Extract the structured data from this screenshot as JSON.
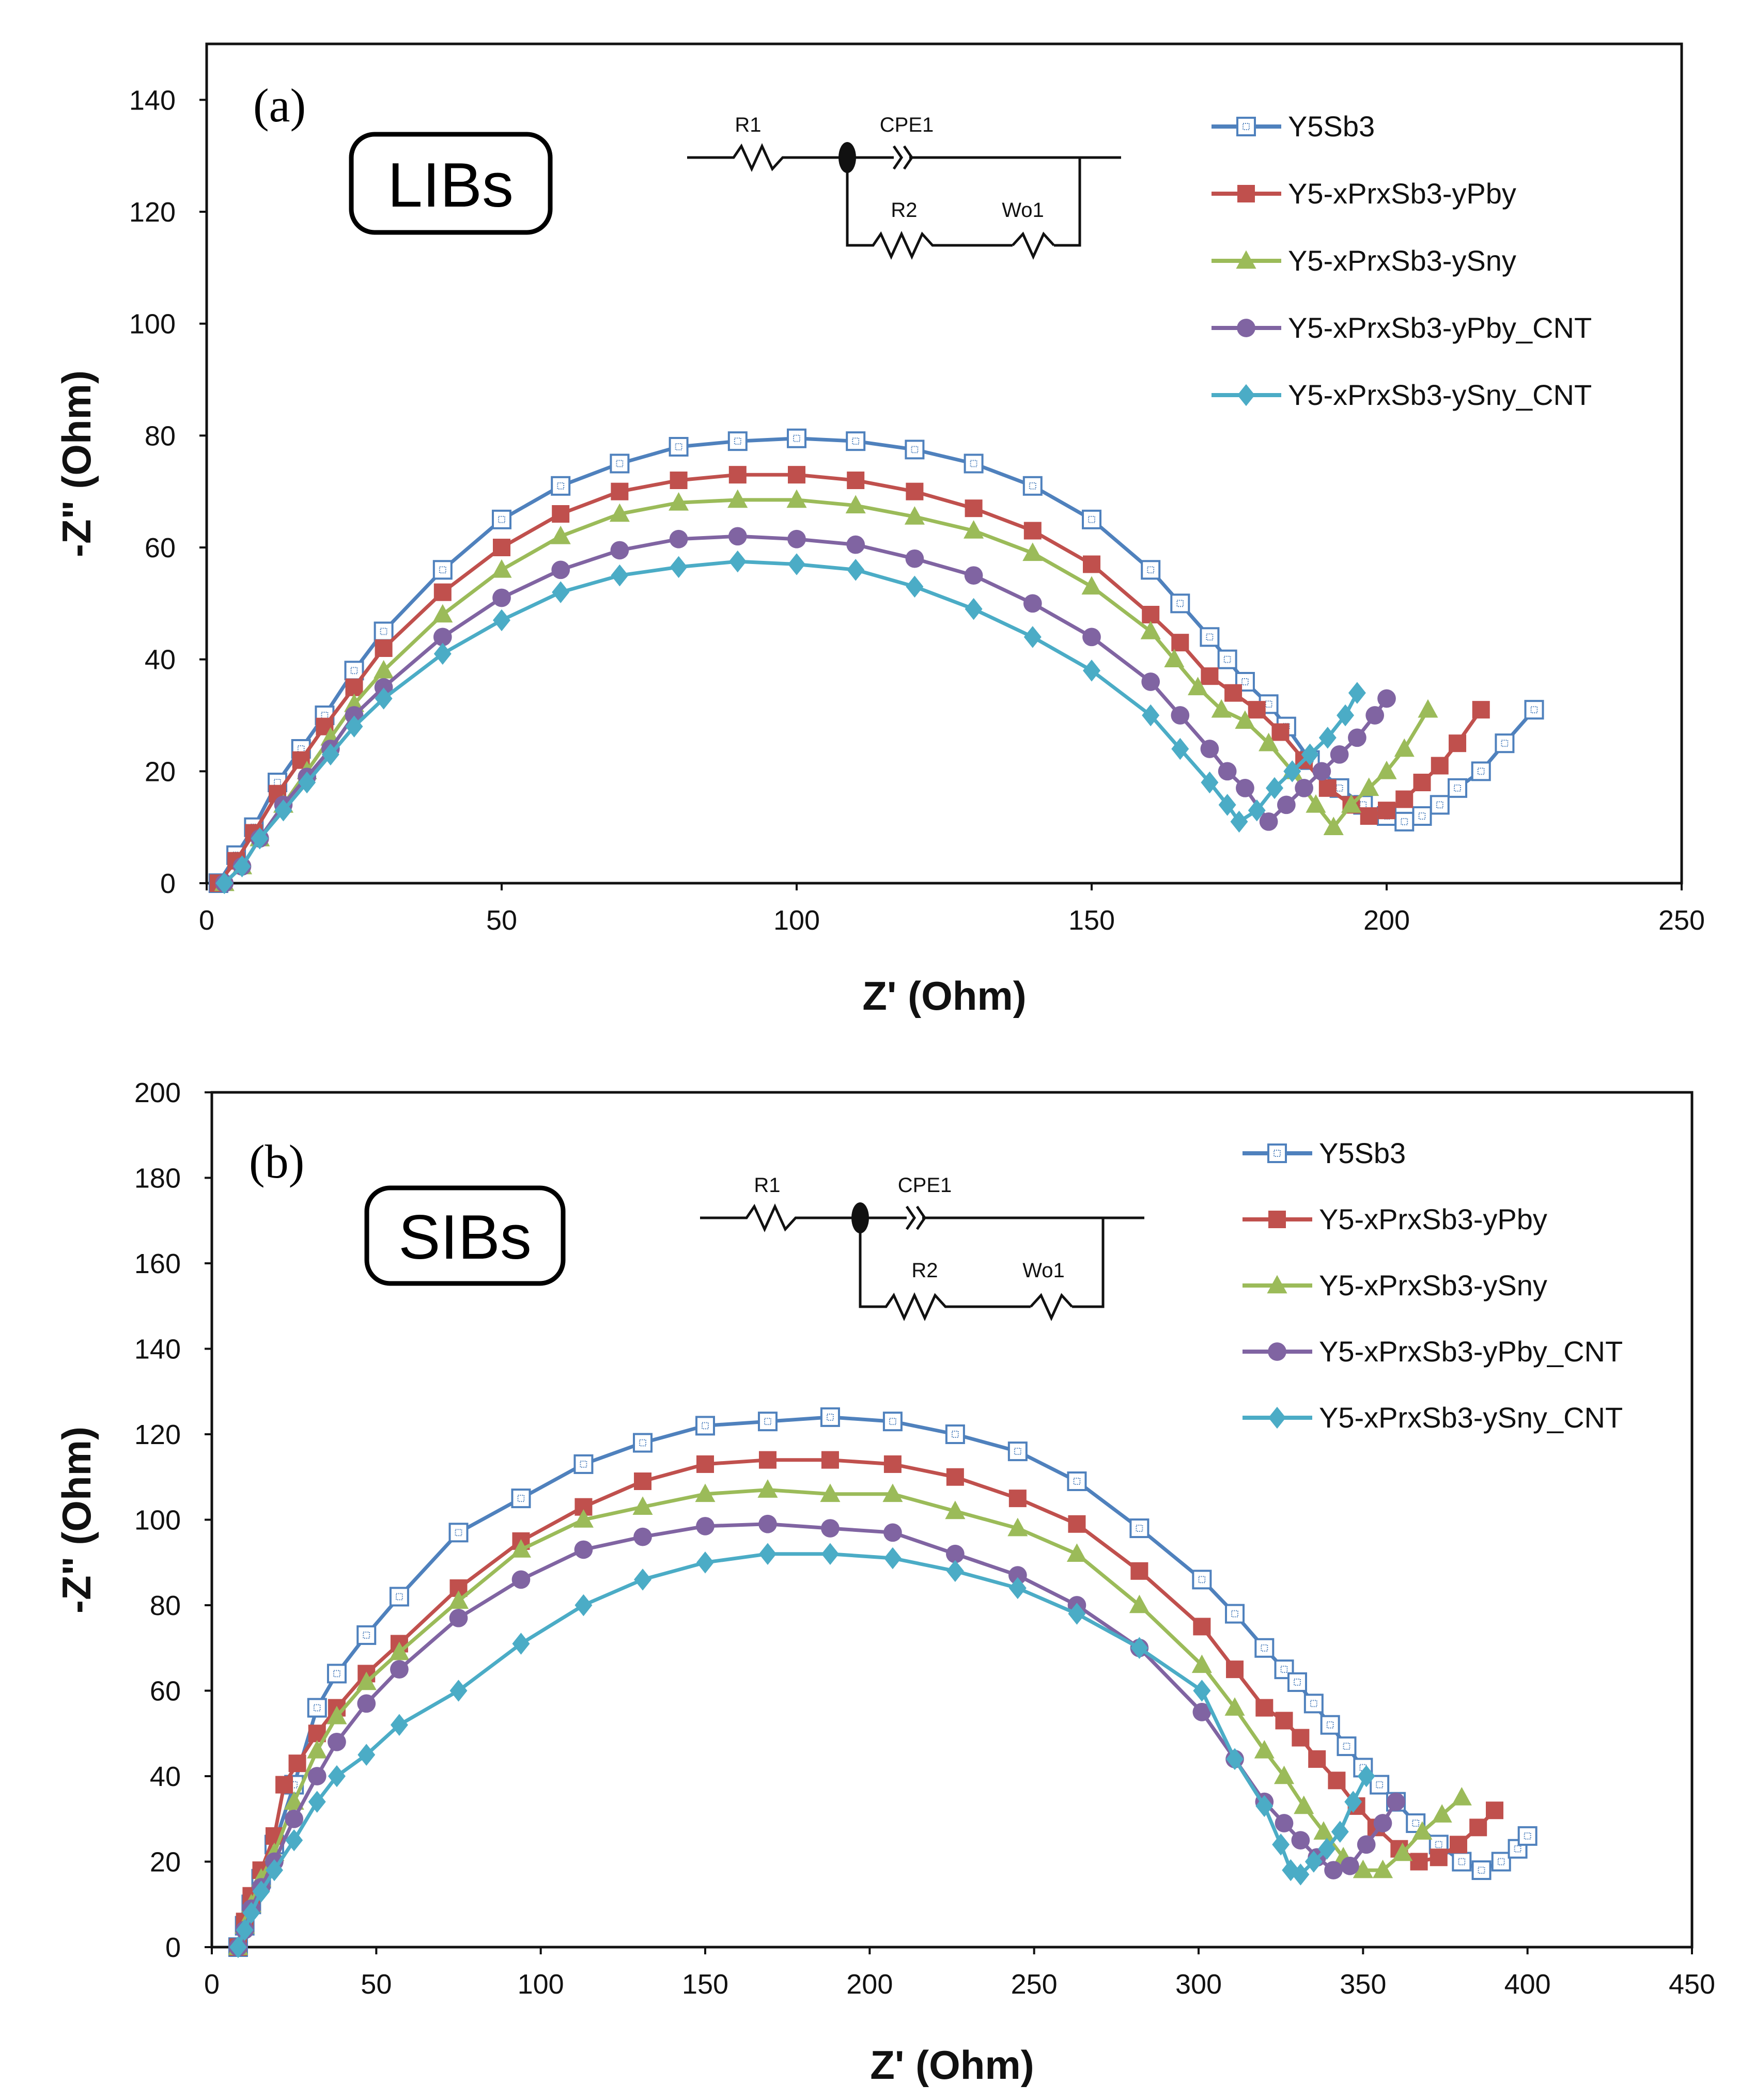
{
  "chart_data": [
    {
      "type": "scatter",
      "panel_label": "(a)",
      "badge": "LIBs",
      "xlabel": "Z' (Ohm)",
      "ylabel": "-Z\" (Ohm)",
      "xlim": [
        0,
        250
      ],
      "ylim": [
        0,
        150
      ],
      "x_ticks": [
        "0",
        "50",
        "100",
        "150",
        "200",
        "250"
      ],
      "y_ticks": [
        "0",
        "20",
        "40",
        "60",
        "80",
        "100",
        "120",
        "140"
      ],
      "grid": false,
      "legend_position": "top-right",
      "circuit": {
        "r1": "R1",
        "cpe": "CPE1",
        "r2": "R2",
        "w": "Wo1"
      },
      "series": [
        {
          "name": "Y5Sb3",
          "color": "#4f81bd",
          "marker": "square-open",
          "x": [
            2,
            5,
            8,
            12,
            16,
            20,
            25,
            30,
            40,
            50,
            60,
            70,
            80,
            90,
            100,
            110,
            120,
            130,
            140,
            150,
            160,
            165,
            170,
            173,
            176,
            180,
            183,
            187,
            192,
            196,
            200,
            203,
            206,
            209,
            212,
            216,
            220,
            225
          ],
          "y": [
            0,
            5,
            10,
            18,
            24,
            30,
            38,
            45,
            56,
            65,
            71,
            75,
            78,
            79,
            79.5,
            79,
            77.5,
            75,
            71,
            65,
            56,
            50,
            44,
            40,
            36,
            32,
            28,
            22,
            17,
            14,
            12,
            11,
            12,
            14,
            17,
            20,
            25,
            31
          ]
        },
        {
          "name": "Y5-xPrxSb3-yPby",
          "color": "#c0504d",
          "marker": "square",
          "x": [
            2,
            5,
            8,
            12,
            16,
            20,
            25,
            30,
            40,
            50,
            60,
            70,
            80,
            90,
            100,
            110,
            120,
            130,
            140,
            150,
            160,
            165,
            170,
            174,
            178,
            182,
            186,
            190,
            194,
            197,
            200,
            203,
            206,
            209,
            212,
            216
          ],
          "y": [
            0,
            4,
            9,
            16,
            22,
            28,
            35,
            42,
            52,
            60,
            66,
            70,
            72,
            73,
            73,
            72,
            70,
            67,
            63,
            57,
            48,
            43,
            37,
            34,
            31,
            27,
            22,
            17,
            14,
            12,
            13,
            15,
            18,
            21,
            25,
            31
          ]
        },
        {
          "name": "Y5-xPrxSb3-ySny",
          "color": "#9bbb59",
          "marker": "triangle",
          "x": [
            3,
            6,
            9,
            13,
            17,
            21,
            25,
            30,
            40,
            50,
            60,
            70,
            80,
            90,
            100,
            110,
            120,
            130,
            140,
            150,
            160,
            164,
            168,
            172,
            176,
            180,
            184,
            188,
            191,
            194,
            197,
            200,
            203,
            207
          ],
          "y": [
            0,
            3,
            8,
            14,
            20,
            26,
            32,
            38,
            48,
            56,
            62,
            66,
            68,
            68.5,
            68.5,
            67.5,
            65.5,
            63,
            59,
            53,
            45,
            40,
            35,
            31,
            29,
            25,
            20,
            14,
            10,
            14,
            17,
            20,
            24,
            31
          ]
        },
        {
          "name": "Y5-xPrxSb3-yPby_CNT",
          "color": "#8064a2",
          "marker": "circle",
          "x": [
            3,
            6,
            9,
            13,
            17,
            21,
            25,
            30,
            40,
            50,
            60,
            70,
            80,
            90,
            100,
            110,
            120,
            130,
            140,
            150,
            160,
            165,
            170,
            173,
            176,
            180,
            183,
            186,
            189,
            192,
            195,
            198,
            200
          ],
          "y": [
            0,
            3,
            8,
            14,
            19,
            24,
            30,
            35,
            44,
            51,
            56,
            59.5,
            61.5,
            62,
            61.5,
            60.5,
            58,
            55,
            50,
            44,
            36,
            30,
            24,
            20,
            17,
            11,
            14,
            17,
            20,
            23,
            26,
            30,
            33
          ]
        },
        {
          "name": "Y5-xPrxSb3-ySny_CNT",
          "color": "#4bacc6",
          "marker": "diamond",
          "x": [
            3,
            6,
            9,
            13,
            17,
            21,
            25,
            30,
            40,
            50,
            60,
            70,
            80,
            90,
            100,
            110,
            120,
            130,
            140,
            150,
            160,
            165,
            170,
            173,
            175,
            178,
            181,
            184,
            187,
            190,
            193,
            195
          ],
          "y": [
            0,
            3,
            8,
            13,
            18,
            23,
            28,
            33,
            41,
            47,
            52,
            55,
            56.5,
            57.5,
            57,
            56,
            53,
            49,
            44,
            38,
            30,
            24,
            18,
            14,
            11,
            13,
            17,
            20,
            23,
            26,
            30,
            34
          ]
        }
      ]
    },
    {
      "type": "scatter",
      "panel_label": "(b)",
      "badge": "SIBs",
      "xlabel": "Z' (Ohm)",
      "ylabel": "-Z\" (Ohm)",
      "xlim": [
        0,
        450
      ],
      "ylim": [
        0,
        200
      ],
      "x_ticks": [
        "0",
        "50",
        "100",
        "150",
        "200",
        "250",
        "300",
        "350",
        "400",
        "450"
      ],
      "y_ticks": [
        "0",
        "20",
        "40",
        "60",
        "80",
        "100",
        "120",
        "140",
        "160",
        "180",
        "200"
      ],
      "grid": false,
      "legend_position": "top-right",
      "circuit": {
        "r1": "R1",
        "cpe": "CPE1",
        "r2": "R2",
        "w": "Wo1"
      },
      "series": [
        {
          "name": "Y5Sb3",
          "color": "#4f81bd",
          "marker": "square-open",
          "x": [
            8,
            10,
            12,
            15,
            19,
            25,
            32,
            38,
            47,
            57,
            75,
            94,
            113,
            131,
            150,
            169,
            188,
            207,
            226,
            245,
            263,
            282,
            301,
            311,
            320,
            326,
            330,
            335,
            340,
            345,
            350,
            355,
            360,
            366,
            373,
            380,
            386,
            392,
            397,
            400
          ],
          "y": [
            0,
            5,
            10,
            16,
            24,
            38,
            56,
            64,
            73,
            82,
            97,
            105,
            113,
            118,
            122,
            123,
            124,
            123,
            120,
            116,
            109,
            98,
            86,
            78,
            70,
            65,
            62,
            57,
            52,
            47,
            42,
            38,
            34,
            29,
            24,
            20,
            18,
            20,
            23,
            26
          ]
        },
        {
          "name": "Y5-xPrxSb3-yPby",
          "color": "#c0504d",
          "marker": "square",
          "x": [
            8,
            10,
            12,
            15,
            19,
            22,
            26,
            32,
            38,
            47,
            57,
            75,
            94,
            113,
            131,
            150,
            169,
            188,
            207,
            226,
            245,
            263,
            282,
            301,
            311,
            320,
            326,
            331,
            336,
            342,
            348,
            354,
            361,
            367,
            373,
            379,
            385,
            390
          ],
          "y": [
            0,
            6,
            12,
            18,
            26,
            38,
            43,
            50,
            56,
            64,
            71,
            84,
            95,
            103,
            109,
            113,
            114,
            114,
            113,
            110,
            105,
            99,
            88,
            75,
            65,
            56,
            53,
            49,
            44,
            39,
            33,
            28,
            23,
            20,
            21,
            24,
            28,
            32
          ]
        },
        {
          "name": "Y5-xPrxSb3-ySny",
          "color": "#9bbb59",
          "marker": "triangle",
          "x": [
            8,
            10,
            12,
            15,
            19,
            25,
            32,
            38,
            47,
            57,
            75,
            94,
            113,
            131,
            150,
            169,
            188,
            207,
            226,
            245,
            263,
            282,
            301,
            311,
            320,
            326,
            332,
            338,
            344,
            350,
            356,
            362,
            368,
            374,
            380
          ],
          "y": [
            0,
            5,
            10,
            16,
            22,
            34,
            46,
            54,
            62,
            69,
            81,
            93,
            100,
            103,
            106,
            107,
            106,
            106,
            102,
            98,
            92,
            80,
            66,
            56,
            46,
            40,
            33,
            27,
            21,
            18,
            18,
            22,
            27,
            31,
            35
          ]
        },
        {
          "name": "Y5-xPrxSb3-yPby_CNT",
          "color": "#8064a2",
          "marker": "circle",
          "x": [
            8,
            10,
            12,
            15,
            19,
            25,
            32,
            38,
            47,
            57,
            75,
            94,
            113,
            131,
            150,
            169,
            188,
            207,
            226,
            245,
            263,
            282,
            301,
            311,
            320,
            326,
            331,
            336,
            341,
            346,
            351,
            356,
            360
          ],
          "y": [
            0,
            4,
            9,
            14,
            20,
            30,
            40,
            48,
            57,
            65,
            77,
            86,
            93,
            96,
            98.5,
            99,
            98,
            97,
            92,
            87,
            80,
            70,
            55,
            44,
            34,
            29,
            25,
            21,
            18,
            19,
            24,
            29,
            34
          ]
        },
        {
          "name": "Y5-xPrxSb3-ySny_CNT",
          "color": "#4bacc6",
          "marker": "diamond",
          "x": [
            8,
            10,
            12,
            15,
            19,
            25,
            32,
            38,
            47,
            57,
            75,
            94,
            113,
            131,
            150,
            169,
            188,
            207,
            226,
            245,
            263,
            282,
            301,
            311,
            320,
            325,
            328,
            331,
            335,
            339,
            343,
            347,
            351
          ],
          "y": [
            0,
            4,
            8,
            13,
            18,
            25,
            34,
            40,
            45,
            52,
            60,
            71,
            80,
            86,
            90,
            92,
            92,
            91,
            88,
            84,
            78,
            70,
            60,
            44,
            33,
            24,
            18,
            17,
            20,
            23,
            27,
            34,
            40
          ]
        }
      ]
    }
  ]
}
